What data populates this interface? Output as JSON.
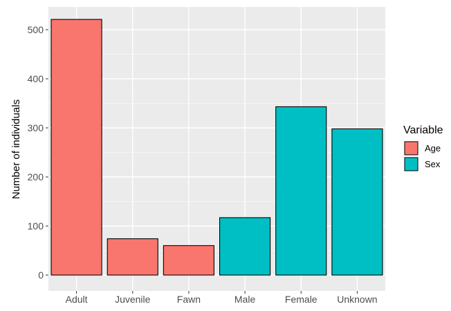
{
  "chart_data": {
    "type": "bar",
    "categories": [
      "Adult",
      "Juvenile",
      "Fawn",
      "Male",
      "Female",
      "Unknown"
    ],
    "values": [
      521,
      74,
      60,
      117,
      343,
      298
    ],
    "groups": [
      "Age",
      "Age",
      "Age",
      "Sex",
      "Sex",
      "Sex"
    ],
    "ylabel": "Number of individuals",
    "xlabel": "",
    "ylim": [
      0,
      530
    ],
    "yticks": [
      0,
      100,
      200,
      300,
      400,
      500
    ],
    "grid": true,
    "legend": {
      "title": "Variable",
      "placement": "right",
      "entries": [
        {
          "name": "Age",
          "color": "#F8766D"
        },
        {
          "name": "Sex",
          "color": "#00BFC4"
        }
      ]
    },
    "colors": {
      "panel": "#EBEBEB",
      "grid": "#FFFFFF",
      "bar_outline": "#000000"
    }
  }
}
